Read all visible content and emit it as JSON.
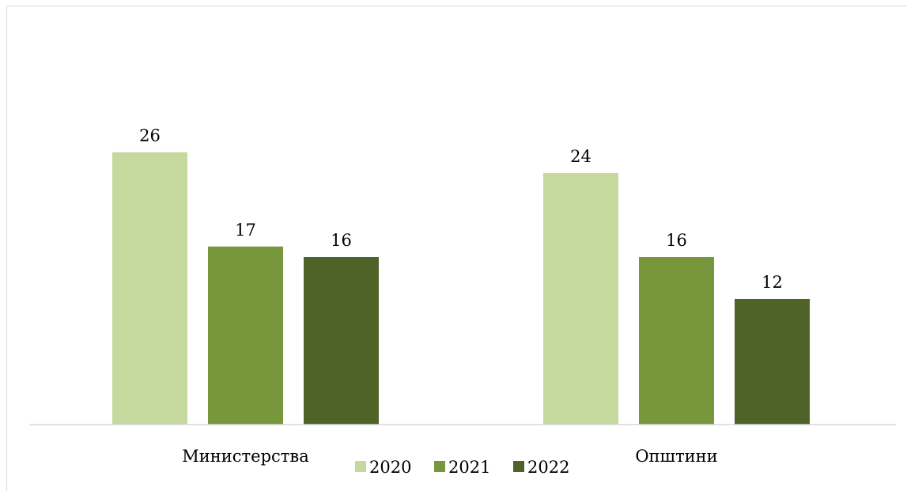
{
  "chart_data": {
    "type": "bar",
    "title": "",
    "xlabel": "",
    "ylabel": "",
    "categories": [
      "Министерства",
      "Општини"
    ],
    "series": [
      {
        "name": "2020",
        "color": "#c5d89d",
        "values": [
          26,
          24
        ]
      },
      {
        "name": "2021",
        "color": "#78963c",
        "values": [
          17,
          16
        ]
      },
      {
        "name": "2022",
        "color": "#4f6228",
        "values": [
          16,
          12
        ]
      }
    ],
    "ylim": [
      0,
      30
    ],
    "grid": false,
    "legend_position": "bottom",
    "data_labels": true
  }
}
